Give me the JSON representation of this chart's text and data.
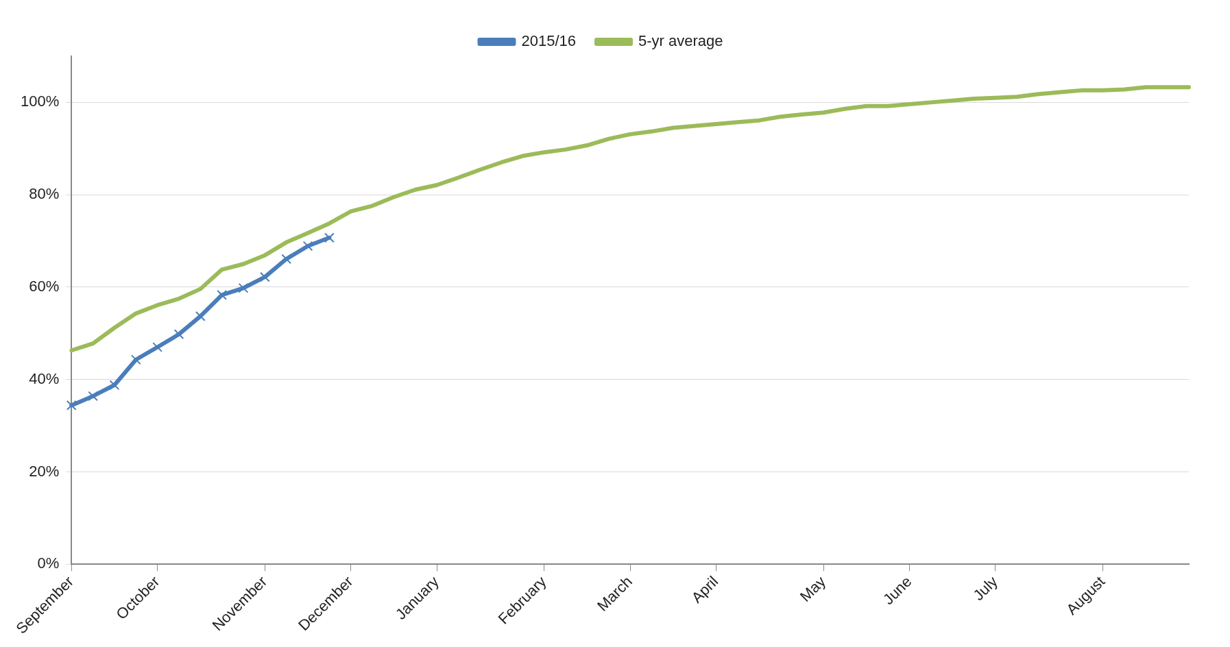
{
  "chart_data": {
    "type": "line",
    "legend": "top",
    "grid": "y",
    "line_style": "solid",
    "categories": [
      "September",
      null,
      null,
      null,
      "October",
      null,
      null,
      null,
      null,
      "November",
      null,
      null,
      null,
      "December",
      null,
      null,
      null,
      "January",
      null,
      null,
      null,
      null,
      "February",
      null,
      null,
      null,
      "March",
      null,
      null,
      null,
      "April",
      null,
      null,
      null,
      null,
      "May",
      null,
      null,
      null,
      "June",
      null,
      null,
      null,
      "July",
      null,
      null,
      null,
      null,
      "August",
      null,
      null,
      null,
      null
    ],
    "ylim": [
      0,
      110
    ],
    "yticks": [
      {
        "value": 0,
        "label": "0%"
      },
      {
        "value": 20,
        "label": "20%"
      },
      {
        "value": 40,
        "label": "40%"
      },
      {
        "value": 60,
        "label": "60%"
      },
      {
        "value": 80,
        "label": "80%"
      },
      {
        "value": 100,
        "label": "100%"
      }
    ],
    "series": [
      {
        "name": "2015/16",
        "color": "#4a7ebb",
        "marker": "cross",
        "values": [
          34.4,
          36.4,
          38.8,
          44.3,
          47,
          49.8,
          53.7,
          58.3,
          59.8,
          62.2,
          66.1,
          68.9,
          70.7,
          null,
          null,
          null,
          null,
          null,
          null,
          null,
          null,
          null,
          null,
          null,
          null,
          null,
          null,
          null,
          null,
          null,
          null,
          null,
          null,
          null,
          null,
          null,
          null,
          null,
          null,
          null,
          null,
          null,
          null,
          null,
          null,
          null,
          null,
          null,
          null,
          null,
          null,
          null,
          null
        ]
      },
      {
        "name": "5-yr average",
        "color": "#9bbb59",
        "marker": "none",
        "values": [
          46.3,
          47.8,
          51.2,
          54.3,
          56.1,
          57.5,
          59.6,
          63.8,
          65,
          66.9,
          69.7,
          71.7,
          73.8,
          76.4,
          77.6,
          79.5,
          81.1,
          82.1,
          83.7,
          85.4,
          87,
          88.4,
          89.2,
          89.8,
          90.7,
          92.1,
          93.1,
          93.7,
          94.5,
          94.9,
          95.3,
          95.7,
          96.1,
          96.9,
          97.4,
          97.8,
          98.6,
          99.2,
          99.2,
          99.6,
          100,
          100.4,
          100.8,
          101,
          101.2,
          101.8,
          102.2,
          102.6,
          102.6,
          102.8,
          103.3,
          103.3,
          103.3
        ]
      }
    ]
  }
}
